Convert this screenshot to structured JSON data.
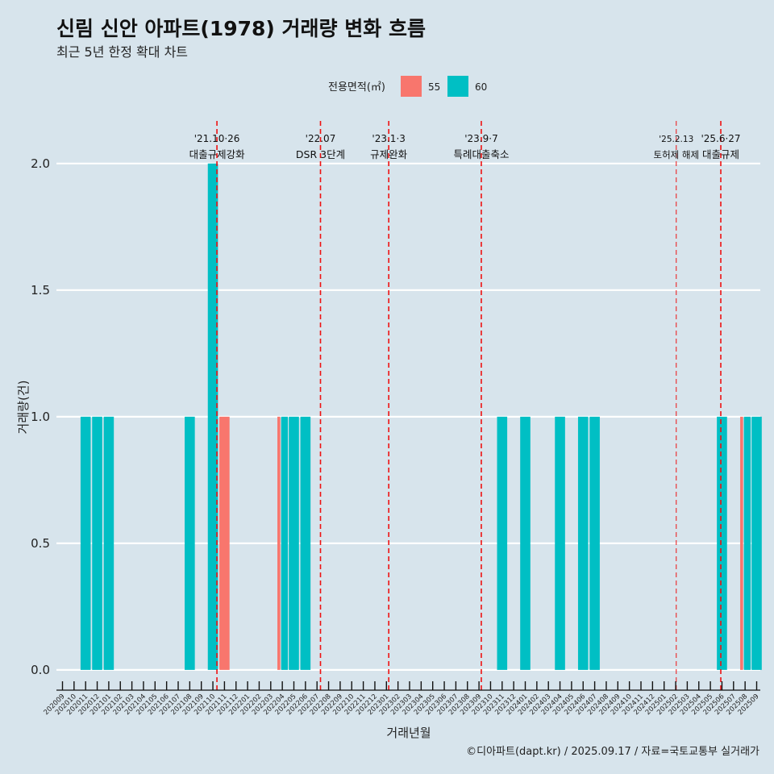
{
  "chart_data": {
    "type": "bar",
    "title": "신림 신안 아파트(1978) 거래량 변화 흐름",
    "subtitle": "최근 5년 한정 확대 차트",
    "xlabel": "거래년월",
    "ylabel": "거래량(건)",
    "caption": "©디아파트(dapt.kr) / 2025.09.17 / 자료=국토교통부 실거래가",
    "ylim": [
      -0.08,
      2.2
    ],
    "yticks": [
      0.0,
      0.5,
      1.0,
      1.5,
      2.0
    ],
    "ytick_labels": [
      "0.0",
      "0.5",
      "1.0",
      "1.5",
      "2.0"
    ],
    "legend": {
      "title": "전용면적(㎡)",
      "position": "top",
      "entries": [
        {
          "label": "55",
          "color": "#f8766d"
        },
        {
          "label": "60",
          "color": "#00bfc4"
        }
      ]
    },
    "categories": [
      "202009",
      "202010",
      "202011",
      "202012",
      "202101",
      "202102",
      "202103",
      "202104",
      "202105",
      "202106",
      "202107",
      "202108",
      "202109",
      "202110",
      "202111",
      "202112",
      "202201",
      "202202",
      "202203",
      "202204",
      "202205",
      "202206",
      "202207",
      "202208",
      "202209",
      "202210",
      "202211",
      "202212",
      "202301",
      "202302",
      "202303",
      "202304",
      "202305",
      "202306",
      "202307",
      "202308",
      "202309",
      "202310",
      "202311",
      "202312",
      "202401",
      "202402",
      "202403",
      "202404",
      "202405",
      "202406",
      "202407",
      "202408",
      "202409",
      "202410",
      "202411",
      "202412",
      "202501",
      "202502",
      "202503",
      "202504",
      "202505",
      "202506",
      "202507",
      "202508",
      "202509"
    ],
    "series": [
      {
        "name": "55",
        "color": "#f8766d",
        "values": [
          {
            "month": "202111",
            "value": 1
          },
          {
            "month": "202204",
            "value": 1
          },
          {
            "month": "202508",
            "value": 1
          }
        ]
      },
      {
        "name": "60",
        "color": "#00bfc4",
        "values": [
          {
            "month": "202011",
            "value": 1
          },
          {
            "month": "202012",
            "value": 1
          },
          {
            "month": "202101",
            "value": 1
          },
          {
            "month": "202108",
            "value": 1
          },
          {
            "month": "202110",
            "value": 2
          },
          {
            "month": "202204",
            "value": 1
          },
          {
            "month": "202205",
            "value": 1
          },
          {
            "month": "202206",
            "value": 1
          },
          {
            "month": "202311",
            "value": 1
          },
          {
            "month": "202401",
            "value": 1
          },
          {
            "month": "202404",
            "value": 1
          },
          {
            "month": "202406",
            "value": 1
          },
          {
            "month": "202407",
            "value": 1
          },
          {
            "month": "202506",
            "value": 1
          },
          {
            "month": "202508",
            "value": 1
          },
          {
            "month": "202509",
            "value": 1
          }
        ]
      }
    ],
    "annotations": [
      {
        "month_index": 13.35,
        "date": "'21.10·26",
        "label": "대출규제강화",
        "style": "major"
      },
      {
        "month_index": 22.3,
        "date": "'22.07",
        "label": "DSR 3단계",
        "style": "major"
      },
      {
        "month_index": 28.2,
        "date": "'23.1·3",
        "label": "규제완화",
        "style": "major"
      },
      {
        "month_index": 36.2,
        "date": "'23.9·7",
        "label": "특례대출축소",
        "style": "major"
      },
      {
        "month_index": 53.05,
        "date": "'25.2.13",
        "label": "토허제 해제",
        "style": "minor"
      },
      {
        "month_index": 56.9,
        "date": "'25.6·27",
        "label": "대출규제",
        "style": "major"
      }
    ]
  }
}
